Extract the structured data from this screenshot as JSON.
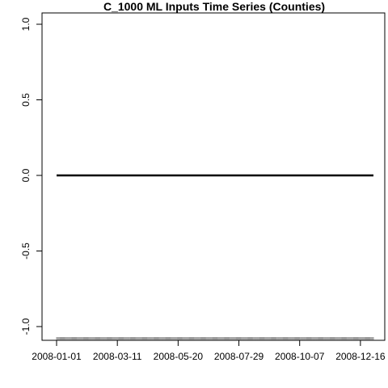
{
  "chart_data": {
    "type": "line",
    "title": "C_1000 ML Inputs Time Series (Counties)",
    "xlabel": "",
    "ylabel": "",
    "x_start": "2008-01-01",
    "x_end": "2008-12-31",
    "x_ticks": [
      "2008-01-01",
      "2008-03-11",
      "2008-05-20",
      "2008-07-29",
      "2008-10-07",
      "2008-12-16"
    ],
    "y_ticks": [
      "-1.0",
      "-0.5",
      "0.0",
      "0.5",
      "1.0"
    ],
    "ylim": [
      -1.0,
      1.0
    ],
    "grid": false,
    "legend": "none",
    "rug": "daily tick marks along the x-axis",
    "series": [
      {
        "x": [
          "2008-01-01",
          "2008-12-31"
        ],
        "values": [
          0,
          0
        ],
        "color": "#000000"
      }
    ]
  }
}
